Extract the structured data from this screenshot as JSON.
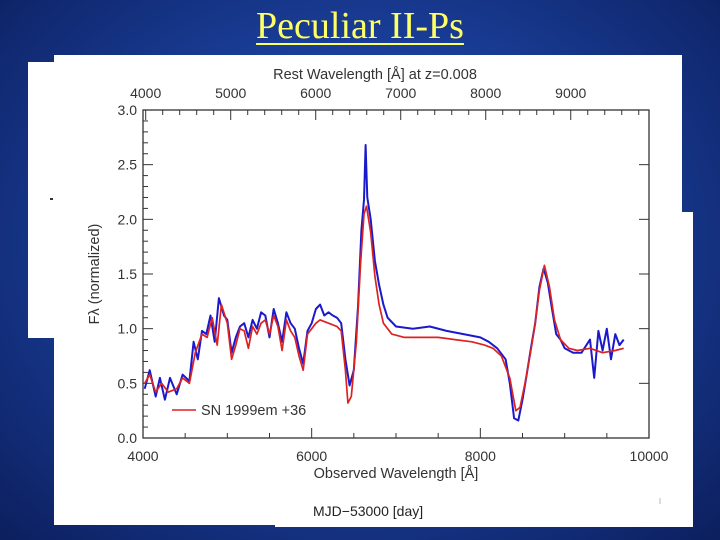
{
  "slide": {
    "title": "Peculiar II-Ps"
  },
  "footer": {
    "label": "MJD−53000 [day]"
  },
  "colors": {
    "background": "#1a3f9a",
    "title": "#ffff66",
    "series_blue": "#1a1acc",
    "series_red": "#dd2222",
    "axes": "#333333"
  },
  "chart_data": {
    "type": "line",
    "xlabel": "Observed Wavelength [Å]",
    "ylabel": "Fλ (normalized)",
    "top_axis_label": "Rest Wavelength [Å] at z=0.008",
    "xlim": [
      4000,
      10000
    ],
    "ylim": [
      0.0,
      3.0
    ],
    "xticks": [
      "4000",
      "6000",
      "8000",
      "10000"
    ],
    "yticks": [
      "0.0",
      "0.5",
      "1.0",
      "1.5",
      "2.0",
      "2.5",
      "3.0"
    ],
    "top_ticks": [
      "4000",
      "5000",
      "6000",
      "7000",
      "8000",
      "9000"
    ],
    "legend": {
      "label": "SN 1999em +36",
      "placement": "bottom-left"
    },
    "series": [
      {
        "color": "#1a1acc",
        "points": [
          [
            4020,
            0.45
          ],
          [
            4080,
            0.62
          ],
          [
            4150,
            0.38
          ],
          [
            4200,
            0.55
          ],
          [
            4260,
            0.35
          ],
          [
            4320,
            0.55
          ],
          [
            4400,
            0.4
          ],
          [
            4470,
            0.58
          ],
          [
            4550,
            0.52
          ],
          [
            4600,
            0.88
          ],
          [
            4650,
            0.72
          ],
          [
            4700,
            0.98
          ],
          [
            4750,
            0.95
          ],
          [
            4800,
            1.12
          ],
          [
            4850,
            0.88
          ],
          [
            4900,
            1.28
          ],
          [
            4960,
            1.12
          ],
          [
            5000,
            1.08
          ],
          [
            5050,
            0.78
          ],
          [
            5100,
            0.92
          ],
          [
            5150,
            1.02
          ],
          [
            5200,
            1.05
          ],
          [
            5250,
            0.92
          ],
          [
            5300,
            1.08
          ],
          [
            5350,
            1.0
          ],
          [
            5400,
            1.15
          ],
          [
            5450,
            1.12
          ],
          [
            5500,
            0.92
          ],
          [
            5550,
            1.18
          ],
          [
            5600,
            1.05
          ],
          [
            5650,
            0.88
          ],
          [
            5700,
            1.15
          ],
          [
            5750,
            1.05
          ],
          [
            5800,
            1.0
          ],
          [
            5850,
            0.82
          ],
          [
            5900,
            0.68
          ],
          [
            5950,
            0.98
          ],
          [
            6000,
            1.05
          ],
          [
            6050,
            1.18
          ],
          [
            6100,
            1.22
          ],
          [
            6150,
            1.12
          ],
          [
            6200,
            1.15
          ],
          [
            6250,
            1.12
          ],
          [
            6300,
            1.1
          ],
          [
            6350,
            1.05
          ],
          [
            6400,
            0.72
          ],
          [
            6450,
            0.48
          ],
          [
            6500,
            0.62
          ],
          [
            6550,
            1.2
          ],
          [
            6590,
            1.9
          ],
          [
            6620,
            2.18
          ],
          [
            6640,
            2.68
          ],
          [
            6660,
            2.2
          ],
          [
            6700,
            2.0
          ],
          [
            6750,
            1.62
          ],
          [
            6800,
            1.4
          ],
          [
            6850,
            1.22
          ],
          [
            6900,
            1.1
          ],
          [
            7000,
            1.02
          ],
          [
            7200,
            1.0
          ],
          [
            7400,
            1.02
          ],
          [
            7600,
            0.98
          ],
          [
            7800,
            0.95
          ],
          [
            8000,
            0.92
          ],
          [
            8100,
            0.88
          ],
          [
            8200,
            0.82
          ],
          [
            8300,
            0.72
          ],
          [
            8350,
            0.5
          ],
          [
            8400,
            0.18
          ],
          [
            8450,
            0.16
          ],
          [
            8500,
            0.35
          ],
          [
            8550,
            0.58
          ],
          [
            8600,
            0.82
          ],
          [
            8650,
            1.05
          ],
          [
            8700,
            1.38
          ],
          [
            8750,
            1.55
          ],
          [
            8800,
            1.42
          ],
          [
            8850,
            1.18
          ],
          [
            8900,
            0.95
          ],
          [
            8950,
            0.9
          ],
          [
            9000,
            0.82
          ],
          [
            9100,
            0.78
          ],
          [
            9200,
            0.78
          ],
          [
            9300,
            0.9
          ],
          [
            9350,
            0.55
          ],
          [
            9400,
            0.98
          ],
          [
            9450,
            0.8
          ],
          [
            9500,
            1.0
          ],
          [
            9550,
            0.72
          ],
          [
            9600,
            0.95
          ],
          [
            9650,
            0.85
          ],
          [
            9700,
            0.9
          ]
        ]
      },
      {
        "color": "#dd2222",
        "points": [
          [
            4020,
            0.5
          ],
          [
            4080,
            0.58
          ],
          [
            4150,
            0.42
          ],
          [
            4220,
            0.5
          ],
          [
            4300,
            0.42
          ],
          [
            4400,
            0.45
          ],
          [
            4470,
            0.55
          ],
          [
            4550,
            0.5
          ],
          [
            4620,
            0.78
          ],
          [
            4700,
            0.95
          ],
          [
            4760,
            0.92
          ],
          [
            4820,
            1.1
          ],
          [
            4880,
            0.85
          ],
          [
            4930,
            1.22
          ],
          [
            5000,
            1.05
          ],
          [
            5050,
            0.72
          ],
          [
            5100,
            0.85
          ],
          [
            5150,
            1.0
          ],
          [
            5200,
            0.98
          ],
          [
            5250,
            0.82
          ],
          [
            5300,
            1.02
          ],
          [
            5350,
            0.95
          ],
          [
            5400,
            1.05
          ],
          [
            5450,
            1.08
          ],
          [
            5500,
            0.95
          ],
          [
            5550,
            1.12
          ],
          [
            5600,
            1.02
          ],
          [
            5650,
            0.8
          ],
          [
            5700,
            1.08
          ],
          [
            5750,
            0.98
          ],
          [
            5800,
            0.92
          ],
          [
            5850,
            0.75
          ],
          [
            5900,
            0.62
          ],
          [
            5950,
            0.95
          ],
          [
            6000,
            1.0
          ],
          [
            6050,
            1.05
          ],
          [
            6100,
            1.08
          ],
          [
            6200,
            1.05
          ],
          [
            6300,
            1.02
          ],
          [
            6350,
            0.98
          ],
          [
            6400,
            0.62
          ],
          [
            6430,
            0.32
          ],
          [
            6470,
            0.38
          ],
          [
            6530,
            0.88
          ],
          [
            6580,
            1.6
          ],
          [
            6620,
            2.05
          ],
          [
            6650,
            2.12
          ],
          [
            6700,
            1.88
          ],
          [
            6750,
            1.48
          ],
          [
            6800,
            1.22
          ],
          [
            6850,
            1.05
          ],
          [
            6950,
            0.95
          ],
          [
            7100,
            0.92
          ],
          [
            7300,
            0.92
          ],
          [
            7500,
            0.92
          ],
          [
            7700,
            0.9
          ],
          [
            7900,
            0.88
          ],
          [
            8050,
            0.85
          ],
          [
            8150,
            0.82
          ],
          [
            8250,
            0.75
          ],
          [
            8350,
            0.55
          ],
          [
            8420,
            0.25
          ],
          [
            8470,
            0.28
          ],
          [
            8530,
            0.5
          ],
          [
            8600,
            0.8
          ],
          [
            8650,
            1.05
          ],
          [
            8700,
            1.35
          ],
          [
            8760,
            1.58
          ],
          [
            8820,
            1.38
          ],
          [
            8880,
            1.08
          ],
          [
            8950,
            0.9
          ],
          [
            9050,
            0.82
          ],
          [
            9150,
            0.8
          ],
          [
            9300,
            0.82
          ],
          [
            9450,
            0.78
          ],
          [
            9600,
            0.8
          ],
          [
            9700,
            0.82
          ]
        ]
      }
    ]
  }
}
